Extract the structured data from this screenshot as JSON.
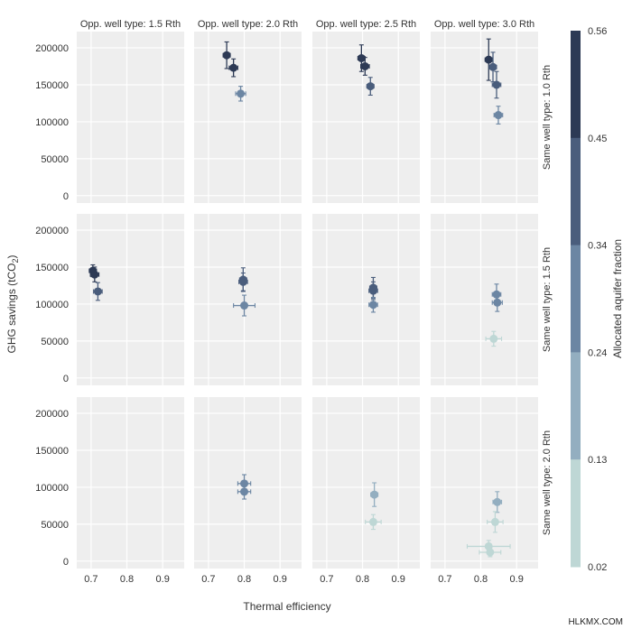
{
  "chart_data": {
    "type": "scatter",
    "xlabel": "Thermal efficiency",
    "ylabel": "GHG savings (tCO",
    "ylabel_sub": "2",
    "ylabel_close": ")",
    "xlim": [
      0.66,
      0.96
    ],
    "ylim": [
      -10000,
      222000
    ],
    "x_ticks": [
      "0.7",
      "0.8",
      "0.9"
    ],
    "y_ticks": [
      "0",
      "50000",
      "100000",
      "150000",
      "200000"
    ],
    "column_titles": [
      "Opp. well type: 1.5 Rth",
      "Opp. well type: 2.0 Rth",
      "Opp. well type: 2.5 Rth",
      "Opp. well type: 3.0 Rth"
    ],
    "row_titles": [
      "Same well type: 1.0 Rth",
      "Same well type: 1.5 Rth",
      "Same well type: 2.0 Rth"
    ],
    "colorbar": {
      "label": "Allocated aquifer fraction",
      "ticks": [
        "0.56",
        "0.45",
        "0.34",
        "0.24",
        "0.13",
        "0.02"
      ],
      "bands": [
        "#2d3a55",
        "#4a5d7c",
        "#6c86a3",
        "#93aec0",
        "#bed7d5"
      ]
    },
    "panels": [
      {
        "row": 0,
        "col": 0,
        "points": []
      },
      {
        "row": 0,
        "col": 1,
        "points": [
          {
            "x": 0.751,
            "y": 190000,
            "xerr": 0.01,
            "yerr": 18000,
            "fraction": 0.5
          },
          {
            "x": 0.77,
            "y": 173000,
            "xerr": 0.012,
            "yerr": 12000,
            "fraction": 0.5
          },
          {
            "x": 0.79,
            "y": 138000,
            "xerr": 0.014,
            "yerr": 10000,
            "fraction": 0.33
          }
        ]
      },
      {
        "row": 0,
        "col": 2,
        "points": [
          {
            "x": 0.797,
            "y": 186000,
            "xerr": 0.01,
            "yerr": 18000,
            "fraction": 0.5
          },
          {
            "x": 0.807,
            "y": 175000,
            "xerr": 0.012,
            "yerr": 12000,
            "fraction": 0.5
          },
          {
            "x": 0.822,
            "y": 148000,
            "xerr": 0.01,
            "yerr": 12000,
            "fraction": 0.4
          }
        ]
      },
      {
        "row": 0,
        "col": 3,
        "points": [
          {
            "x": 0.822,
            "y": 184000,
            "xerr": 0.01,
            "yerr": 28000,
            "fraction": 0.5
          },
          {
            "x": 0.834,
            "y": 174000,
            "xerr": 0.01,
            "yerr": 20000,
            "fraction": 0.4
          },
          {
            "x": 0.844,
            "y": 150000,
            "xerr": 0.012,
            "yerr": 18000,
            "fraction": 0.4
          },
          {
            "x": 0.849,
            "y": 109000,
            "xerr": 0.012,
            "yerr": 12000,
            "fraction": 0.28
          }
        ]
      },
      {
        "row": 1,
        "col": 0,
        "points": [
          {
            "x": 0.705,
            "y": 145000,
            "xerr": 0.01,
            "yerr": 8000,
            "fraction": 0.5
          },
          {
            "x": 0.71,
            "y": 140000,
            "xerr": 0.012,
            "yerr": 10000,
            "fraction": 0.5
          },
          {
            "x": 0.719,
            "y": 117000,
            "xerr": 0.012,
            "yerr": 12000,
            "fraction": 0.4
          }
        ]
      },
      {
        "row": 1,
        "col": 1,
        "points": [
          {
            "x": 0.797,
            "y": 133000,
            "xerr": 0.01,
            "yerr": 16000,
            "fraction": 0.4
          },
          {
            "x": 0.797,
            "y": 130000,
            "xerr": 0.012,
            "yerr": 12000,
            "fraction": 0.4
          },
          {
            "x": 0.8,
            "y": 98000,
            "xerr": 0.03,
            "yerr": 14000,
            "fraction": 0.28
          }
        ]
      },
      {
        "row": 1,
        "col": 2,
        "points": [
          {
            "x": 0.83,
            "y": 122000,
            "xerr": 0.01,
            "yerr": 14000,
            "fraction": 0.35
          },
          {
            "x": 0.83,
            "y": 118000,
            "xerr": 0.012,
            "yerr": 12000,
            "fraction": 0.35
          },
          {
            "x": 0.83,
            "y": 99000,
            "xerr": 0.012,
            "yerr": 10000,
            "fraction": 0.33
          }
        ]
      },
      {
        "row": 1,
        "col": 3,
        "points": [
          {
            "x": 0.844,
            "y": 113000,
            "xerr": 0.012,
            "yerr": 14000,
            "fraction": 0.33
          },
          {
            "x": 0.846,
            "y": 102000,
            "xerr": 0.014,
            "yerr": 12000,
            "fraction": 0.33
          },
          {
            "x": 0.836,
            "y": 53000,
            "xerr": 0.022,
            "yerr": 10000,
            "fraction": 0.08
          }
        ]
      },
      {
        "row": 2,
        "col": 0,
        "points": []
      },
      {
        "row": 2,
        "col": 1,
        "points": [
          {
            "x": 0.8,
            "y": 105000,
            "xerr": 0.018,
            "yerr": 12000,
            "fraction": 0.33
          },
          {
            "x": 0.8,
            "y": 94000,
            "xerr": 0.018,
            "yerr": 10000,
            "fraction": 0.33
          }
        ]
      },
      {
        "row": 2,
        "col": 2,
        "points": [
          {
            "x": 0.833,
            "y": 90000,
            "xerr": 0.01,
            "yerr": 16000,
            "fraction": 0.22
          },
          {
            "x": 0.83,
            "y": 53000,
            "xerr": 0.022,
            "yerr": 10000,
            "fraction": 0.08
          }
        ]
      },
      {
        "row": 2,
        "col": 3,
        "points": [
          {
            "x": 0.846,
            "y": 80000,
            "xerr": 0.012,
            "yerr": 14000,
            "fraction": 0.22
          },
          {
            "x": 0.84,
            "y": 53000,
            "xerr": 0.022,
            "yerr": 14000,
            "fraction": 0.1
          },
          {
            "x": 0.822,
            "y": 20000,
            "xerr": 0.06,
            "yerr": 8000,
            "fraction": 0.08
          },
          {
            "x": 0.826,
            "y": 12000,
            "xerr": 0.03,
            "yerr": 6000,
            "fraction": 0.08
          }
        ]
      }
    ]
  },
  "watermark": "HLKMX.COM"
}
